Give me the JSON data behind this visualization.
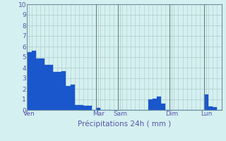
{
  "ylabel_vals": [
    0,
    1,
    2,
    3,
    4,
    5,
    6,
    7,
    8,
    9,
    10
  ],
  "ylim": [
    0,
    10
  ],
  "background_color": "#d4f0f0",
  "grid_color": "#b0c8c8",
  "bar_color": "#1a56cc",
  "bar_edge_color": "#1a56cc",
  "values": [
    5.5,
    5.6,
    4.9,
    4.9,
    4.3,
    4.3,
    3.6,
    3.6,
    3.7,
    2.3,
    2.4,
    0.5,
    0.5,
    0.4,
    0.4,
    0.0,
    0.2,
    0.0,
    0.0,
    0.0,
    0.0,
    0.0,
    0.0,
    0.0,
    0.0,
    0.0,
    0.0,
    0.0,
    1.0,
    1.1,
    1.3,
    0.6,
    0.0,
    0.0,
    0.0,
    0.0,
    0.0,
    0.0,
    0.0,
    0.0,
    0.0,
    1.5,
    0.35,
    0.3,
    0.0
  ],
  "day_labels": [
    "Ven",
    "Mar",
    "Sam",
    "Dim",
    "Lun"
  ],
  "xtick_positions": [
    0,
    16,
    21,
    33,
    41
  ],
  "xlabel": "Précipitations 24h ( mm )",
  "vline_positions": [
    16,
    21,
    33,
    41
  ],
  "vline_color": "#708080",
  "tick_color": "#5555aa",
  "label_color": "#5555aa"
}
